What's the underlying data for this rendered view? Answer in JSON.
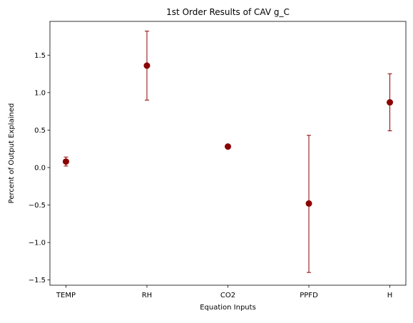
{
  "chart_data": {
    "type": "scatter",
    "title": "1st Order Results of CAV g_C",
    "xlabel": "Equation Inputs",
    "ylabel": "Percent of Output Explained",
    "categories": [
      "TEMP",
      "RH",
      "CO2",
      "PPFD",
      "H"
    ],
    "values": [
      0.08,
      1.36,
      0.28,
      -0.48,
      0.87
    ],
    "error_low": [
      0.02,
      0.9,
      0.28,
      -1.4,
      0.49
    ],
    "error_high": [
      0.14,
      1.82,
      0.28,
      0.43,
      1.25
    ],
    "ylim": [
      -1.57,
      1.95
    ],
    "yticks": [
      -1.5,
      -1.0,
      -0.5,
      0.0,
      0.5,
      1.0,
      1.5
    ],
    "ytick_labels": [
      "−1.5",
      "−1.0",
      "−0.5",
      "0.0",
      "0.5",
      "1.0",
      "1.5"
    ],
    "grid": false,
    "marker_color": "#8b0000",
    "error_color": "#8b0000"
  }
}
